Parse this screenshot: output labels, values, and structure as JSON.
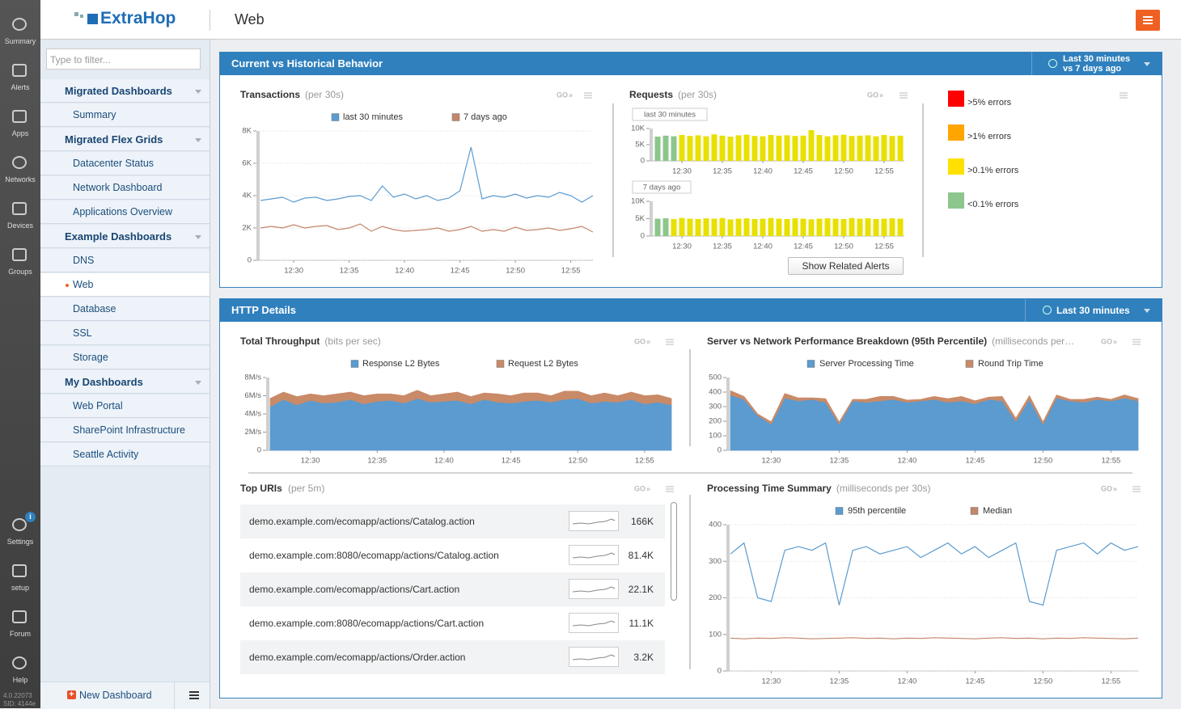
{
  "sidebar": {
    "items": [
      "Summary",
      "Alerts",
      "Apps",
      "Networks",
      "Devices",
      "Groups",
      "Settings",
      "setup",
      "Forum",
      "Help"
    ],
    "badge": "i",
    "version": "4.0.22073",
    "sid": "SID: 4144e"
  },
  "header": {
    "logo": "ExtraHop",
    "title": "Web"
  },
  "nav": {
    "filter_placeholder": "Type to filter...",
    "groups": [
      {
        "name": "Migrated Dashboards",
        "items": [
          {
            "label": "Summary"
          }
        ]
      },
      {
        "name": "Migrated Flex Grids",
        "items": [
          {
            "label": "Datacenter Status"
          },
          {
            "label": "Network Dashboard"
          },
          {
            "label": "Applications Overview"
          }
        ]
      },
      {
        "name": "Example Dashboards",
        "items": [
          {
            "label": "DNS"
          },
          {
            "label": "Web",
            "selected": true
          },
          {
            "label": "Database"
          },
          {
            "label": "SSL"
          },
          {
            "label": "Storage"
          }
        ]
      },
      {
        "name": "My Dashboards",
        "items": [
          {
            "label": "Web Portal"
          },
          {
            "label": "SharePoint Infrastructure"
          },
          {
            "label": "Seattle Activity"
          }
        ]
      }
    ],
    "new_dashboard": "New Dashboard"
  },
  "sections": [
    {
      "title": "Current vs Historical Behavior",
      "time": "Last 30 minutes",
      "compare": "vs 7 days ago",
      "button": "Show Related Alerts"
    },
    {
      "title": "HTTP Details",
      "time": "Last 30 minutes"
    }
  ],
  "alerts_legend": [
    {
      "label": ">5% errors",
      "color": "#ff0000"
    },
    {
      "label": ">1% errors",
      "color": "#ffa500"
    },
    {
      "label": ">0.1% errors",
      "color": "#ffe000"
    },
    {
      "label": "<0.1% errors",
      "color": "#8cc68c"
    }
  ],
  "top_uris": {
    "title": "Top URIs",
    "subtitle": "(per 5m)",
    "go": "GO",
    "rows": [
      {
        "url": "demo.example.com/ecomapp/actions/Catalog.action",
        "value": "166K"
      },
      {
        "url": "demo.example.com:8080/ecomapp/actions/Catalog.action",
        "value": "81.4K"
      },
      {
        "url": "demo.example.com/ecomapp/actions/Cart.action",
        "value": "22.1K"
      },
      {
        "url": "demo.example.com:8080/ecomapp/actions/Cart.action",
        "value": "11.1K"
      },
      {
        "url": "demo.example.com/ecomapp/actions/Order.action",
        "value": "3.2K"
      }
    ]
  },
  "chart_data": [
    {
      "type": "line",
      "title": "Transactions",
      "subtitle": "(per 30s)",
      "go": "GO",
      "grid": true,
      "categories": [
        null,
        null,
        null,
        "12:30",
        null,
        null,
        null,
        null,
        "12:35",
        null,
        null,
        null,
        null,
        "12:40",
        null,
        null,
        null,
        null,
        "12:45",
        null,
        null,
        null,
        null,
        "12:50",
        null,
        null,
        null,
        null,
        "12:55",
        null,
        null
      ],
      "ylim": [
        0,
        8000
      ],
      "yticks": [
        0,
        {
          "value": 2000,
          "label": "2K"
        },
        {
          "value": 4000,
          "label": "4K"
        },
        {
          "value": 6000,
          "label": "6K"
        },
        {
          "value": 8000,
          "label": "8K"
        }
      ],
      "series": [
        {
          "name": "last 30 minutes",
          "color": "#5a9bd0",
          "values": [
            3700,
            3800,
            3900,
            3600,
            3850,
            3900,
            3700,
            3800,
            3950,
            4000,
            3700,
            4600,
            3900,
            4100,
            3800,
            4000,
            3700,
            3850,
            4300,
            7000,
            3800,
            4000,
            3900,
            4100,
            3850,
            4000,
            3900,
            4200,
            4000,
            3600,
            4000
          ]
        },
        {
          "name": "7 days ago",
          "color": "#c4866b",
          "values": [
            2000,
            2100,
            2000,
            2200,
            2000,
            2100,
            2150,
            1900,
            2000,
            2250,
            1800,
            2100,
            1900,
            1800,
            1850,
            1900,
            2000,
            1800,
            1900,
            2100,
            1800,
            1900,
            1800,
            2050,
            1850,
            1900,
            2000,
            1850,
            1950,
            2100,
            1750
          ]
        }
      ]
    },
    {
      "type": "bar",
      "title": "Requests",
      "subtitle": "(per 30s)",
      "go": "GO",
      "label": "last 30 minutes",
      "categories": [
        null,
        null,
        null,
        "12:30",
        null,
        null,
        null,
        null,
        "12:35",
        null,
        null,
        null,
        null,
        "12:40",
        null,
        null,
        null,
        null,
        "12:45",
        null,
        null,
        null,
        null,
        "12:50",
        null,
        null,
        null,
        null,
        "12:55",
        null,
        null
      ],
      "ylim": [
        0,
        10000
      ],
      "yticks": [
        0,
        {
          "value": 5000,
          "label": "5K"
        },
        {
          "value": 10000,
          "label": "10K"
        }
      ],
      "values": [
        7500,
        7800,
        7600,
        8000,
        7700,
        7900,
        7600,
        8200,
        7800,
        7500,
        7900,
        8100,
        7700,
        7600,
        8000,
        7800,
        7900,
        7700,
        7800,
        9500,
        8000,
        7600,
        7900,
        8100,
        7700,
        7800,
        7900,
        7600,
        8000,
        7700,
        7800
      ],
      "colors": [
        "#8cc68c",
        "#8cc68c",
        "#8cc68c",
        "#e8e000",
        "#e8e000",
        "#e8e000",
        "#e8e000",
        "#e8e000",
        "#e8e000",
        "#e8e000",
        "#e8e000",
        "#e8e000",
        "#e8e000",
        "#e8e000",
        "#e8e000",
        "#e8e000",
        "#e8e000",
        "#e8e000",
        "#e8e000",
        "#e8e000",
        "#e8e000",
        "#e8e000",
        "#e8e000",
        "#e8e000",
        "#e8e000",
        "#e8e000",
        "#e8e000",
        "#e8e000",
        "#e8e000",
        "#e8e000",
        "#e8e000"
      ]
    },
    {
      "type": "bar",
      "label": "7 days ago",
      "categories": [
        null,
        null,
        null,
        "12:30",
        null,
        null,
        null,
        null,
        "12:35",
        null,
        null,
        null,
        null,
        "12:40",
        null,
        null,
        null,
        null,
        "12:45",
        null,
        null,
        null,
        null,
        "12:50",
        null,
        null,
        null,
        null,
        "12:55",
        null,
        null
      ],
      "ylim": [
        0,
        10000
      ],
      "yticks": [
        0,
        {
          "value": 5000,
          "label": "5K"
        },
        {
          "value": 10000,
          "label": "10K"
        }
      ],
      "values": [
        5000,
        5100,
        4900,
        5200,
        5000,
        4900,
        5100,
        5000,
        5200,
        4800,
        5000,
        5100,
        4900,
        5000,
        5200,
        5000,
        4900,
        5100,
        5000,
        4800,
        5000,
        5100,
        5000,
        4900,
        5200,
        5000,
        5100,
        4900,
        5000,
        5100,
        5000
      ],
      "colors": [
        "#8cc68c",
        "#8cc68c",
        "#e8e000",
        "#e8e000",
        "#e8e000",
        "#e8e000",
        "#e8e000",
        "#e8e000",
        "#e8e000",
        "#e8e000",
        "#e8e000",
        "#e8e000",
        "#e8e000",
        "#e8e000",
        "#e8e000",
        "#e8e000",
        "#e8e000",
        "#e8e000",
        "#e8e000",
        "#e8e000",
        "#e8e000",
        "#e8e000",
        "#e8e000",
        "#e8e000",
        "#e8e000",
        "#e8e000",
        "#e8e000",
        "#e8e000",
        "#e8e000",
        "#e8e000",
        "#e8e000"
      ]
    },
    {
      "type": "stacked-area",
      "title": "Total Throughput",
      "subtitle": "(bits per sec)",
      "go": "GO",
      "categories": [
        null,
        null,
        null,
        "12:30",
        null,
        null,
        null,
        null,
        "12:35",
        null,
        null,
        null,
        null,
        "12:40",
        null,
        null,
        null,
        null,
        "12:45",
        null,
        null,
        null,
        null,
        "12:50",
        null,
        null,
        null,
        null,
        "12:55",
        null,
        null
      ],
      "ylim": [
        0,
        8000000
      ],
      "yticks": [
        0,
        {
          "value": 2000000,
          "label": "2M/s"
        },
        {
          "value": 4000000,
          "label": "4M/s"
        },
        {
          "value": 6000000,
          "label": "6M/s"
        },
        {
          "value": 8000000,
          "label": "8M/s"
        }
      ],
      "series": [
        {
          "name": "Response L2 Bytes",
          "color": "#5b9bcf",
          "values": [
            4800000,
            5600000,
            5000000,
            5500000,
            5200000,
            5300000,
            5600000,
            5100000,
            5400000,
            5500000,
            5200000,
            5700000,
            5300000,
            5400000,
            5500000,
            5100000,
            5600000,
            5300000,
            5200000,
            5400000,
            5500000,
            5300000,
            5600000,
            5700000,
            5200000,
            5400000,
            5300000,
            5600000,
            5100000,
            5300000,
            5000000
          ]
        },
        {
          "name": "Request L2 Bytes",
          "color": "#c98a68",
          "values": [
            900000,
            800000,
            900000,
            700000,
            800000,
            900000,
            800000,
            900000,
            800000,
            700000,
            800000,
            900000,
            700000,
            800000,
            900000,
            800000,
            700000,
            900000,
            800000,
            900000,
            800000,
            700000,
            900000,
            800000,
            800000,
            900000,
            700000,
            800000,
            900000,
            800000,
            700000
          ]
        }
      ]
    },
    {
      "type": "stacked-area",
      "title": "Server vs Network Performance Breakdown (95th Percentile)",
      "subtitle": "(milliseconds per…",
      "go": "GO",
      "categories": [
        null,
        null,
        null,
        "12:30",
        null,
        null,
        null,
        null,
        "12:35",
        null,
        null,
        null,
        null,
        "12:40",
        null,
        null,
        null,
        null,
        "12:45",
        null,
        null,
        null,
        null,
        "12:50",
        null,
        null,
        null,
        null,
        "12:55",
        null,
        null
      ],
      "ylim": [
        0,
        500
      ],
      "yticks": [
        0,
        100,
        200,
        300,
        400,
        500
      ],
      "series": [
        {
          "name": "Server Processing Time",
          "color": "#5b9bcf",
          "values": [
            380,
            350,
            240,
            180,
            360,
            340,
            350,
            330,
            180,
            340,
            330,
            340,
            350,
            330,
            340,
            350,
            330,
            340,
            320,
            350,
            340,
            200,
            350,
            180,
            360,
            340,
            330,
            350,
            340,
            360,
            340
          ]
        },
        {
          "name": "Round Trip Time",
          "color": "#c98a68",
          "values": [
            30,
            20,
            10,
            15,
            30,
            20,
            10,
            25,
            15,
            10,
            20,
            30,
            20,
            15,
            10,
            20,
            25,
            30,
            20,
            15,
            30,
            20,
            25,
            15,
            20,
            10,
            20,
            15,
            10,
            20,
            15
          ]
        }
      ]
    },
    {
      "type": "line",
      "title": "Processing Time Summary",
      "subtitle": "(milliseconds per 30s)",
      "go": "GO",
      "grid": true,
      "categories": [
        null,
        null,
        null,
        "12:30",
        null,
        null,
        null,
        null,
        "12:35",
        null,
        null,
        null,
        null,
        "12:40",
        null,
        null,
        null,
        null,
        "12:45",
        null,
        null,
        null,
        null,
        "12:50",
        null,
        null,
        null,
        null,
        "12:55",
        null,
        null
      ],
      "ylim": [
        0,
        400
      ],
      "yticks": [
        0,
        100,
        200,
        300,
        400
      ],
      "series": [
        {
          "name": "95th percentile",
          "color": "#5a9bd0",
          "values": [
            320,
            350,
            200,
            190,
            330,
            340,
            330,
            350,
            180,
            330,
            340,
            320,
            330,
            340,
            310,
            330,
            350,
            320,
            340,
            310,
            330,
            350,
            190,
            180,
            330,
            340,
            350,
            320,
            350,
            330,
            340
          ]
        },
        {
          "name": "Median",
          "color": "#c4866b",
          "values": [
            90,
            88,
            90,
            89,
            91,
            90,
            88,
            89,
            90,
            91,
            89,
            90,
            88,
            90,
            89,
            91,
            90,
            89,
            88,
            90,
            91,
            89,
            90,
            88,
            90,
            89,
            91,
            90,
            89,
            88,
            90
          ]
        }
      ]
    }
  ]
}
